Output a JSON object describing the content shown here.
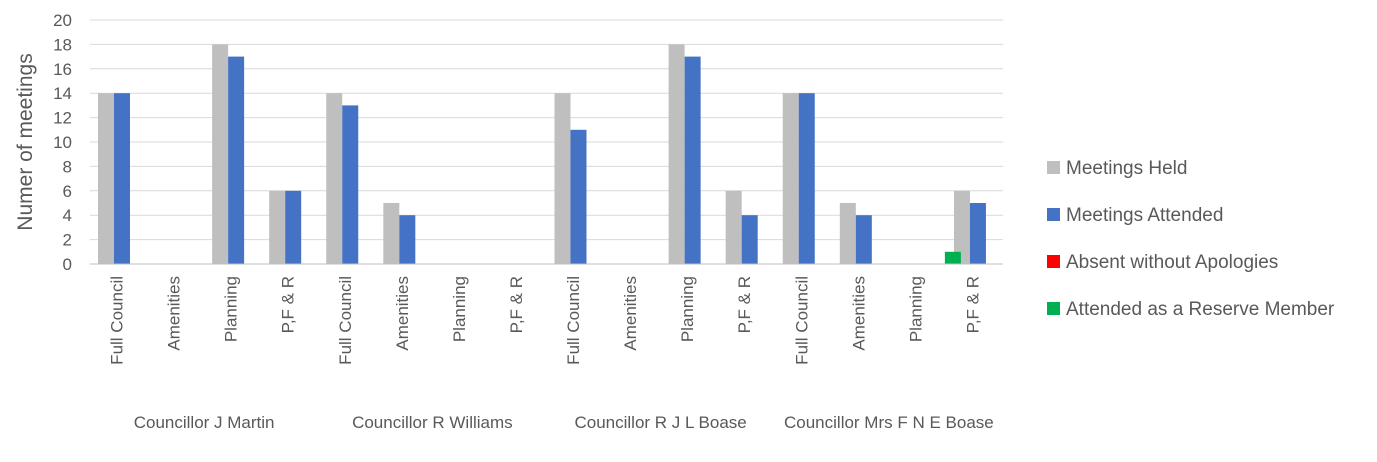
{
  "chart_data": {
    "type": "bar",
    "title": "",
    "xlabel": "",
    "ylabel": "Numer of meetings",
    "ylim": [
      0,
      20
    ],
    "ytick_step": 2,
    "grid": true,
    "legend_position": "right",
    "groups": [
      {
        "name": "Councillor J Martin",
        "categories": [
          "Full Council",
          "Amenities",
          "Planning",
          "P,F & R"
        ]
      },
      {
        "name": "Councillor R Williams",
        "categories": [
          "Full Council",
          "Amenities",
          "Planning",
          "P,F & R"
        ]
      },
      {
        "name": "Councillor R J L Boase",
        "categories": [
          "Full Council",
          "Amenities",
          "Planning",
          "P,F & R"
        ]
      },
      {
        "name": "Councillor Mrs F N E Boase",
        "categories": [
          "Full Council",
          "Amenities",
          "Planning",
          "P,F & R"
        ]
      }
    ],
    "series": [
      {
        "name": "Meetings Held",
        "color": "#bfbfbf",
        "values": [
          14,
          0,
          18,
          6,
          14,
          5,
          0,
          0,
          14,
          0,
          18,
          6,
          14,
          5,
          0,
          6
        ]
      },
      {
        "name": "Meetings Attended",
        "color": "#4472c4",
        "values": [
          14,
          0,
          17,
          6,
          13,
          4,
          0,
          0,
          11,
          0,
          17,
          4,
          14,
          4,
          0,
          5
        ]
      },
      {
        "name": "Absent without Apologies",
        "color": "#ff0000",
        "values": [
          0,
          0,
          0,
          0,
          0,
          0,
          0,
          0,
          0,
          0,
          0,
          0,
          0,
          0,
          0,
          0
        ]
      },
      {
        "name": "Attended as a Reserve Member",
        "color": "#00b050",
        "values": [
          0,
          0,
          0,
          0,
          0,
          0,
          0,
          0,
          0,
          0,
          0,
          0,
          0,
          0,
          1,
          0
        ]
      }
    ]
  }
}
